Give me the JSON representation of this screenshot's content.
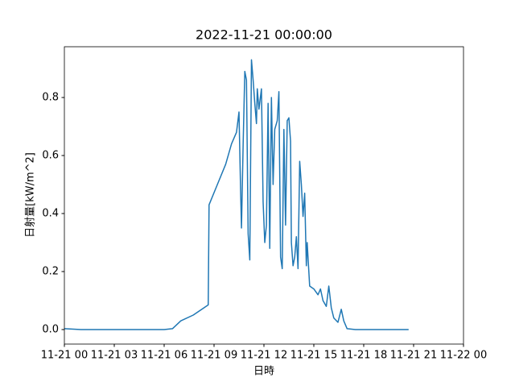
{
  "chart_data": {
    "type": "line",
    "title": "2022-11-21 00:00:00",
    "x_label": "日時",
    "y_label": "日射量[kW/m^2]",
    "color": "#1f77b4",
    "x": [
      0,
      1,
      2,
      3,
      4,
      5,
      6,
      6.5,
      7.0,
      7.75,
      8.65,
      8.7,
      9.2,
      9.7,
      10.05,
      10.35,
      10.5,
      10.6,
      10.65,
      10.75,
      10.85,
      10.95,
      11.05,
      11.15,
      11.25,
      11.35,
      11.45,
      11.55,
      11.6,
      11.7,
      11.85,
      11.95,
      12.05,
      12.15,
      12.25,
      12.35,
      12.45,
      12.55,
      12.65,
      12.8,
      12.9,
      13.0,
      13.1,
      13.2,
      13.3,
      13.4,
      13.5,
      13.6,
      13.65,
      13.75,
      13.85,
      13.95,
      14.05,
      14.15,
      14.25,
      14.35,
      14.45,
      14.55,
      14.6,
      14.75,
      15.0,
      15.25,
      15.4,
      15.55,
      15.75,
      15.9,
      16.05,
      16.2,
      16.45,
      16.65,
      16.8,
      17.0,
      17.5,
      18.5,
      19.5,
      20.7
    ],
    "values": [
      0.003,
      0.0,
      0.0,
      0.0,
      0.0,
      0.0,
      0.0,
      0.003,
      0.03,
      0.05,
      0.085,
      0.43,
      0.5,
      0.57,
      0.64,
      0.68,
      0.75,
      0.47,
      0.35,
      0.64,
      0.89,
      0.86,
      0.33,
      0.24,
      0.93,
      0.86,
      0.78,
      0.71,
      0.83,
      0.76,
      0.83,
      0.44,
      0.3,
      0.36,
      0.78,
      0.28,
      0.8,
      0.5,
      0.69,
      0.72,
      0.82,
      0.25,
      0.21,
      0.69,
      0.36,
      0.72,
      0.73,
      0.65,
      0.3,
      0.22,
      0.25,
      0.32,
      0.21,
      0.58,
      0.5,
      0.39,
      0.47,
      0.22,
      0.3,
      0.15,
      0.14,
      0.12,
      0.14,
      0.1,
      0.08,
      0.15,
      0.075,
      0.04,
      0.025,
      0.07,
      0.03,
      0.003,
      0.0,
      0.0,
      0.0,
      0.0
    ],
    "xlim": [
      0,
      24
    ],
    "xticks": [
      {
        "value": 0,
        "label": "11-21 00"
      },
      {
        "value": 3,
        "label": "11-21 03"
      },
      {
        "value": 6,
        "label": "11-21 06"
      },
      {
        "value": 9,
        "label": "11-21 09"
      },
      {
        "value": 12,
        "label": "11-21 12"
      },
      {
        "value": 15,
        "label": "11-21 15"
      },
      {
        "value": 18,
        "label": "11-21 18"
      },
      {
        "value": 21,
        "label": "11-21 21"
      },
      {
        "value": 24,
        "label": "11-22 00"
      }
    ],
    "ylim": [
      -0.05,
      0.975
    ],
    "yticks": [
      {
        "value": 0,
        "label": "0.0"
      },
      0.2,
      0.4,
      0.6,
      0.8
    ]
  }
}
